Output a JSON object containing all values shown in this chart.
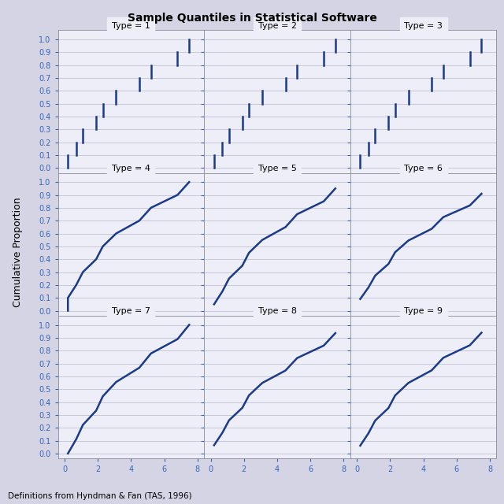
{
  "title": "Sample Quantiles in Statistical Software",
  "subtitle": "Definitions from Hyndman & Fan (TAS, 1996)",
  "type_labels": [
    "Type = 1",
    "Type = 2",
    "Type = 3",
    "Type = 4",
    "Type = 5",
    "Type = 6",
    "Type = 7",
    "Type = 8",
    "Type = 9"
  ],
  "line_color": "#1A3A8A",
  "background_color": "#D4D4E4",
  "axes_bg": "#EEEEF8",
  "grid_color": "#B8B8CC",
  "ylabel": "Cumulative Proportion",
  "xtick_vals": [
    0,
    2,
    4,
    6,
    8
  ],
  "ytick_vals": [
    0.0,
    0.1,
    0.2,
    0.3,
    0.4,
    0.5,
    0.6,
    0.7,
    0.8,
    0.9,
    1.0
  ],
  "xlim": [
    -0.4,
    8.4
  ],
  "ylim": [
    -0.04,
    1.07
  ],
  "figsize": [
    6.4,
    6.4
  ],
  "dpi": 100,
  "lw": 1.8,
  "tick_color": "#3366BB"
}
